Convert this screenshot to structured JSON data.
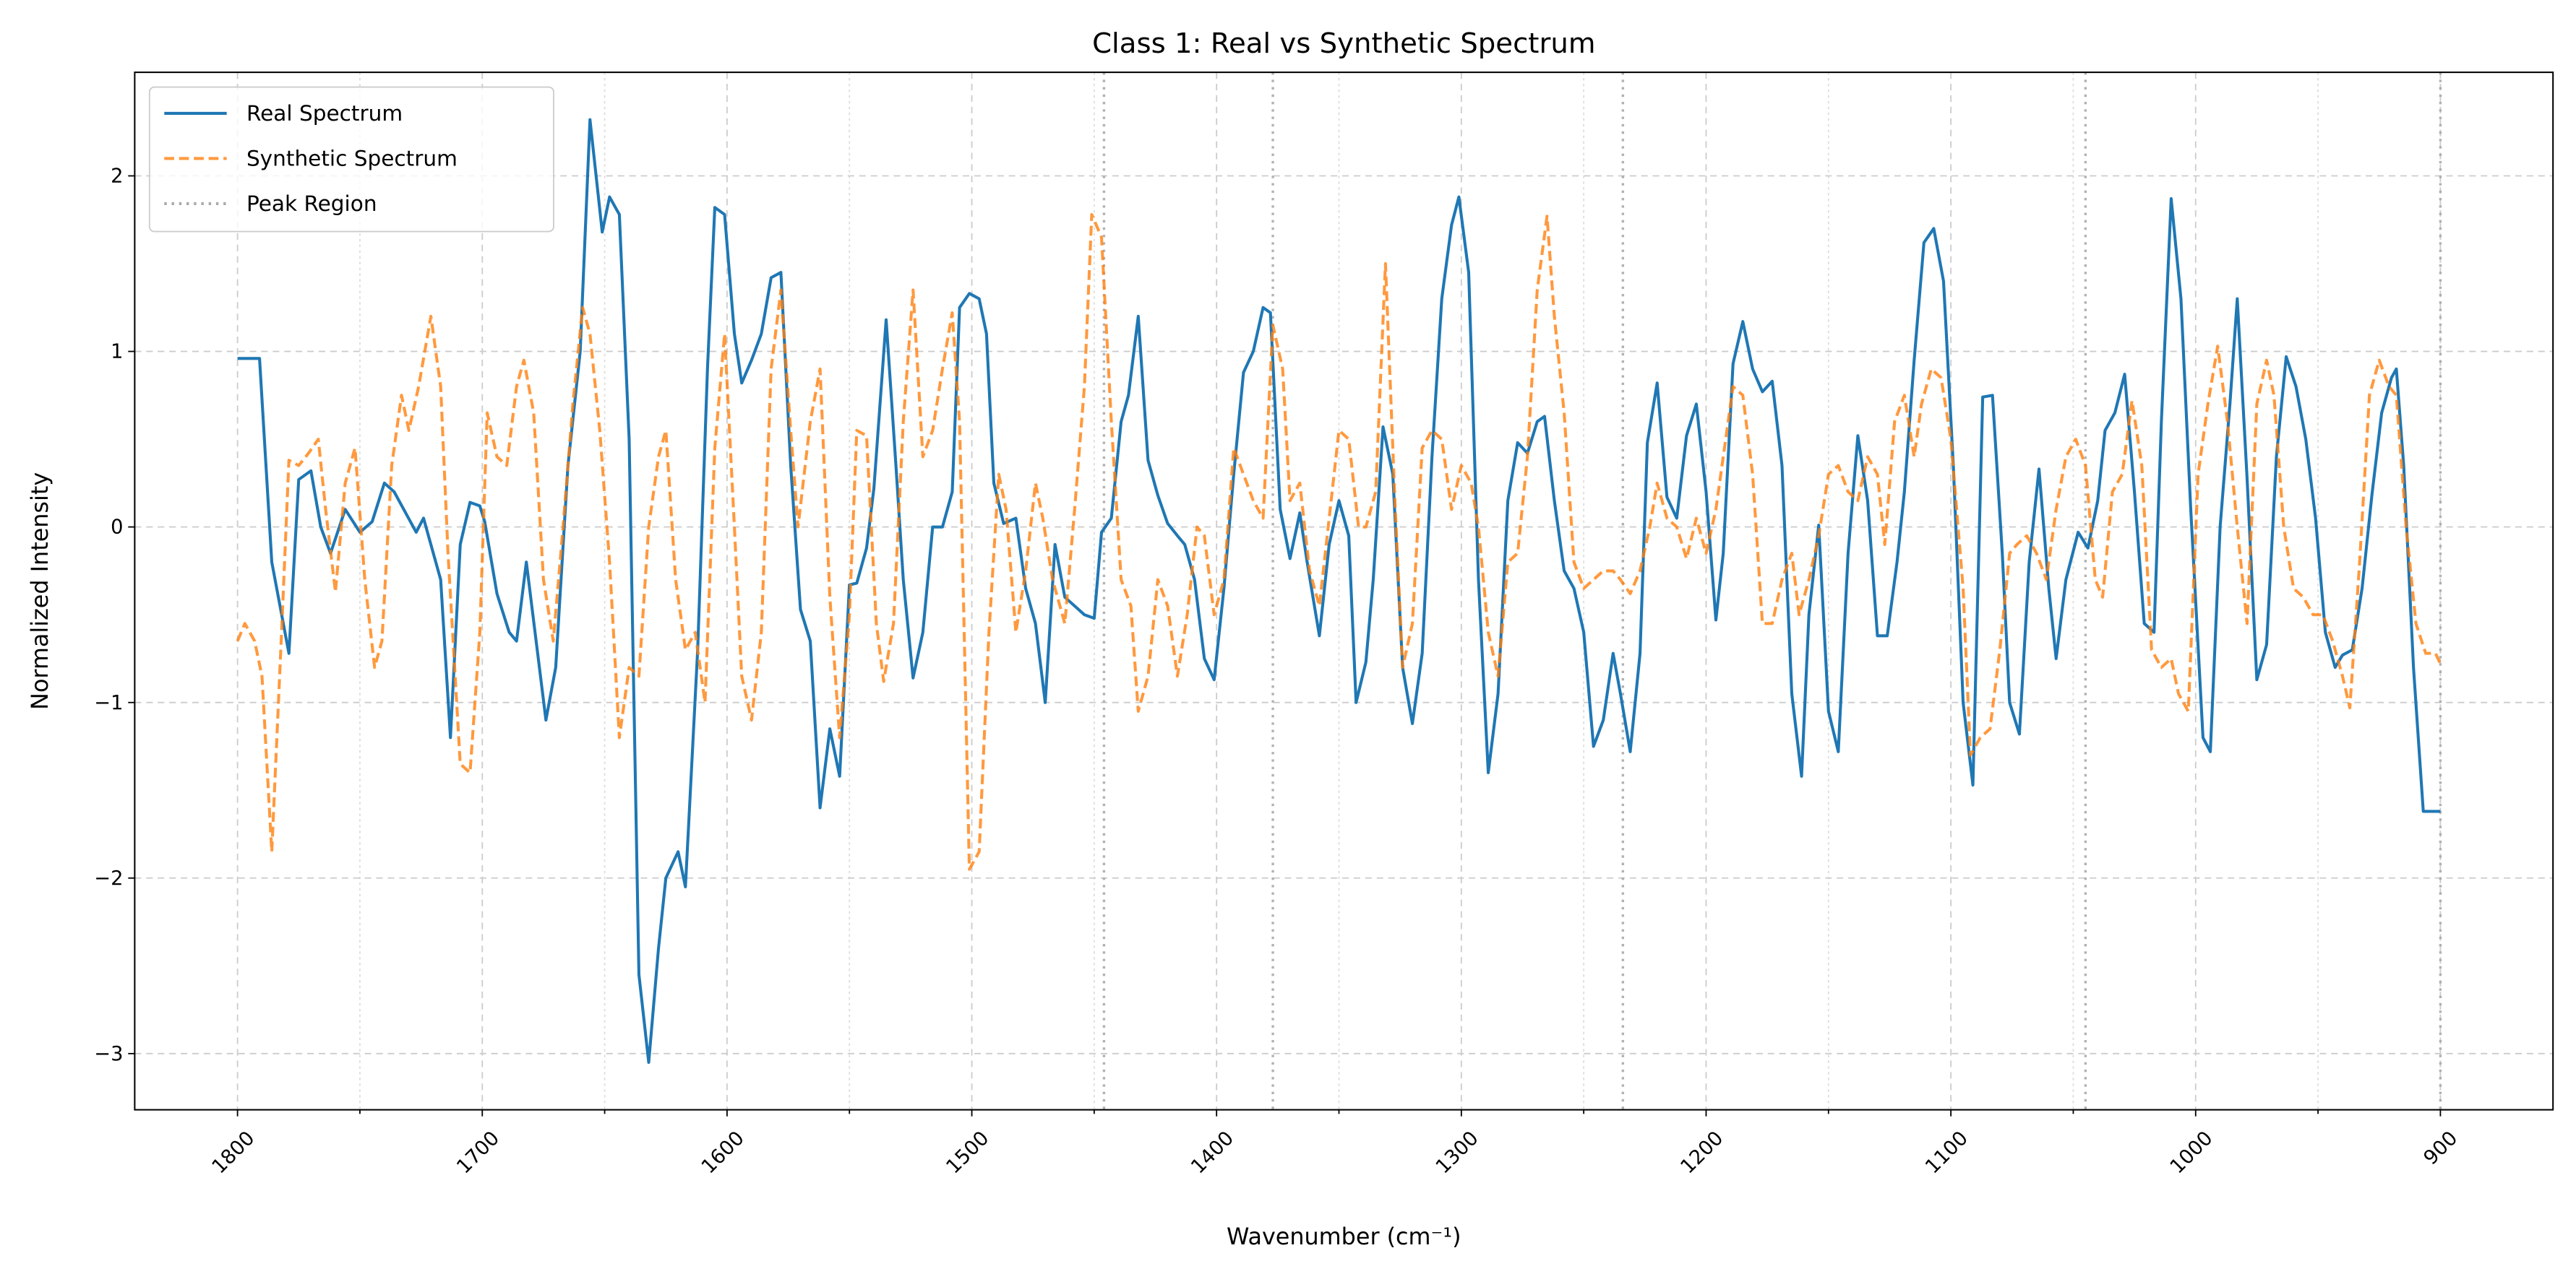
{
  "chart_data": {
    "type": "line",
    "title": "Class 1: Real vs Synthetic Spectrum",
    "xlabel": "Wavenumber (cm⁻¹)",
    "ylabel": "Normalized Intensity",
    "xlim": [
      1842,
      854
    ],
    "ylim": [
      -3.32,
      2.59
    ],
    "xticks": [
      1800,
      1700,
      1600,
      1500,
      1400,
      1300,
      1200,
      1100,
      1000,
      900
    ],
    "xminor_ticks": [
      1750,
      1650,
      1550,
      1450,
      1350,
      1250,
      1150,
      1050,
      950
    ],
    "yticks": [
      {
        "value": -3,
        "label": "−3"
      },
      {
        "value": -2,
        "label": "−2"
      },
      {
        "value": -1,
        "label": "−1"
      },
      0,
      1,
      2
    ],
    "grid": true,
    "legend": "upper left",
    "series": [
      {
        "name": "Real Spectrum",
        "color": "#1f77b4",
        "linestyle": "solid",
        "x": [
          1800,
          1791,
          1786,
          1779,
          1775,
          1770,
          1766,
          1762,
          1756,
          1750,
          1745,
          1740,
          1736,
          1727,
          1724,
          1717,
          1713,
          1709,
          1705,
          1701,
          1699,
          1694,
          1689,
          1686,
          1682,
          1674,
          1670,
          1665,
          1660,
          1656,
          1651,
          1648,
          1644,
          1640,
          1636,
          1632,
          1628,
          1625,
          1620,
          1617,
          1612,
          1608,
          1605,
          1601,
          1597,
          1594,
          1590,
          1586,
          1582,
          1578,
          1574,
          1570,
          1566,
          1562,
          1558,
          1554,
          1550,
          1547,
          1543,
          1540,
          1535,
          1531,
          1528,
          1524,
          1520,
          1516,
          1512,
          1508,
          1505,
          1501,
          1497,
          1494,
          1491,
          1487,
          1482,
          1478,
          1474,
          1470,
          1466,
          1462,
          1458,
          1454,
          1450,
          1447,
          1443,
          1439,
          1436,
          1432,
          1428,
          1424,
          1420,
          1416,
          1413,
          1409,
          1405,
          1401,
          1397,
          1393,
          1389,
          1385,
          1381,
          1378,
          1374,
          1370,
          1366,
          1363,
          1358,
          1354,
          1350,
          1346,
          1343,
          1339,
          1336,
          1332,
          1328,
          1324,
          1320,
          1316,
          1312,
          1308,
          1304,
          1301,
          1297,
          1293,
          1289,
          1285,
          1281,
          1277,
          1273,
          1269,
          1266,
          1262,
          1258,
          1254,
          1250,
          1246,
          1242,
          1238,
          1235,
          1231,
          1227,
          1224,
          1220,
          1216,
          1212,
          1208,
          1204,
          1200,
          1196,
          1193,
          1189,
          1185,
          1181,
          1177,
          1173,
          1169,
          1165,
          1161,
          1158,
          1154,
          1150,
          1146,
          1142,
          1138,
          1134,
          1130,
          1126,
          1122,
          1119,
          1115,
          1111,
          1107,
          1103,
          1099,
          1095,
          1091,
          1087,
          1083,
          1079,
          1076,
          1072,
          1068,
          1064,
          1060,
          1057,
          1053,
          1048,
          1044,
          1040,
          1037,
          1033,
          1029,
          1025,
          1021,
          1017,
          1014,
          1010,
          1006,
          1002,
          997,
          994,
          990,
          986,
          983,
          979,
          975,
          971,
          967,
          963,
          959,
          955,
          951,
          947,
          943,
          940,
          936,
          932,
          928,
          924,
          920,
          918,
          915,
          911,
          907,
          900
        ],
        "values": [
          0.96,
          0.96,
          -0.2,
          -0.72,
          0.27,
          0.32,
          0.0,
          -0.15,
          0.1,
          -0.03,
          0.03,
          0.25,
          0.2,
          -0.03,
          0.05,
          -0.3,
          -1.2,
          -0.1,
          0.14,
          0.12,
          0.03,
          -0.38,
          -0.6,
          -0.65,
          -0.2,
          -1.1,
          -0.8,
          0.35,
          1.0,
          2.32,
          1.68,
          1.88,
          1.78,
          0.5,
          -2.55,
          -3.05,
          -2.4,
          -2.0,
          -1.85,
          -2.05,
          -0.7,
          0.9,
          1.82,
          1.78,
          1.1,
          0.82,
          0.95,
          1.1,
          1.42,
          1.45,
          0.35,
          -0.47,
          -0.65,
          -1.6,
          -1.15,
          -1.42,
          -0.33,
          -0.32,
          -0.12,
          0.22,
          1.18,
          0.35,
          -0.3,
          -0.86,
          -0.6,
          0.0,
          0.0,
          0.2,
          1.25,
          1.33,
          1.3,
          1.1,
          0.25,
          0.02,
          0.05,
          -0.35,
          -0.55,
          -1.0,
          -0.1,
          -0.4,
          -0.45,
          -0.5,
          -0.52,
          -0.03,
          0.05,
          0.6,
          0.75,
          1.2,
          0.38,
          0.18,
          0.02,
          -0.05,
          -0.1,
          -0.3,
          -0.75,
          -0.87,
          -0.35,
          0.3,
          0.88,
          1.0,
          1.25,
          1.22,
          0.1,
          -0.18,
          0.08,
          -0.2,
          -0.62,
          -0.1,
          0.15,
          -0.05,
          -1.0,
          -0.77,
          -0.3,
          0.57,
          0.3,
          -0.8,
          -1.12,
          -0.72,
          0.4,
          1.3,
          1.72,
          1.88,
          1.45,
          -0.3,
          -1.4,
          -0.95,
          0.15,
          0.48,
          0.42,
          0.6,
          0.63,
          0.15,
          -0.25,
          -0.35,
          -0.6,
          -1.25,
          -1.1,
          -0.72,
          -0.95,
          -1.28,
          -0.72,
          0.48,
          0.82,
          0.17,
          0.05,
          0.52,
          0.7,
          0.2,
          -0.53,
          -0.15,
          0.93,
          1.17,
          0.9,
          0.77,
          0.83,
          0.35,
          -0.95,
          -1.42,
          -0.5,
          0.01,
          -1.05,
          -1.28,
          -0.15,
          0.52,
          0.15,
          -0.62,
          -0.62,
          -0.2,
          0.2,
          0.95,
          1.62,
          1.7,
          1.4,
          0.35,
          -1.0,
          -1.47,
          0.74,
          0.75,
          -0.15,
          -1.0,
          -1.18,
          -0.2,
          0.33,
          -0.35,
          -0.75,
          -0.3,
          -0.03,
          -0.12,
          0.15,
          0.55,
          0.65,
          0.87,
          0.2,
          -0.55,
          -0.6,
          0.6,
          1.87,
          1.3,
          0.1,
          -1.2,
          -1.28,
          0.0,
          0.7,
          1.3,
          0.28,
          -0.87,
          -0.67,
          0.4,
          0.97,
          0.8,
          0.5,
          0.05,
          -0.6,
          -0.8,
          -0.73,
          -0.7,
          -0.35,
          0.18,
          0.65,
          0.85,
          0.9,
          0.35,
          -0.8,
          -1.62,
          -1.62
        ]
      },
      {
        "name": "Synthetic Spectrum",
        "color": "#ff7f0e",
        "linestyle": "dashed",
        "x": [
          1800,
          1797,
          1793,
          1790,
          1786,
          1782,
          1779,
          1775,
          1771,
          1767,
          1764,
          1760,
          1756,
          1752,
          1748,
          1744,
          1741,
          1737,
          1733,
          1730,
          1726,
          1721,
          1717,
          1714,
          1709,
          1705,
          1701,
          1698,
          1694,
          1690,
          1686,
          1683,
          1679,
          1675,
          1671,
          1667,
          1663,
          1659,
          1656,
          1652,
          1648,
          1644,
          1640,
          1636,
          1632,
          1628,
          1625,
          1621,
          1617,
          1613,
          1609,
          1605,
          1601,
          1597,
          1594,
          1590,
          1586,
          1582,
          1578,
          1574,
          1571,
          1566,
          1562,
          1558,
          1554,
          1550,
          1547,
          1543,
          1539,
          1536,
          1532,
          1528,
          1524,
          1520,
          1516,
          1512,
          1508,
          1505,
          1501,
          1497,
          1493,
          1489,
          1486,
          1482,
          1478,
          1474,
          1471,
          1467,
          1462,
          1458,
          1454,
          1451,
          1447,
          1443,
          1439,
          1435,
          1432,
          1428,
          1424,
          1420,
          1416,
          1412,
          1408,
          1405,
          1401,
          1397,
          1393,
          1389,
          1385,
          1381,
          1377,
          1373,
          1370,
          1366,
          1362,
          1358,
          1354,
          1350,
          1346,
          1342,
          1339,
          1335,
          1331,
          1327,
          1324,
          1320,
          1316,
          1312,
          1308,
          1304,
          1300,
          1296,
          1293,
          1289,
          1285,
          1281,
          1277,
          1273,
          1269,
          1265,
          1262,
          1258,
          1254,
          1250,
          1246,
          1242,
          1238,
          1235,
          1231,
          1227,
          1223,
          1220,
          1216,
          1212,
          1208,
          1204,
          1200,
          1196,
          1192,
          1189,
          1185,
          1181,
          1177,
          1173,
          1169,
          1165,
          1162,
          1158,
          1154,
          1150,
          1146,
          1142,
          1138,
          1134,
          1130,
          1127,
          1123,
          1119,
          1115,
          1112,
          1108,
          1104,
          1100,
          1095,
          1092,
          1088,
          1084,
          1080,
          1076,
          1073,
          1069,
          1065,
          1061,
          1057,
          1053,
          1049,
          1045,
          1041,
          1038,
          1034,
          1030,
          1026,
          1022,
          1018,
          1014,
          1010,
          1007,
          1003,
          999,
          995,
          991,
          987,
          983,
          979,
          975,
          971,
          968,
          964,
          960,
          956,
          952,
          948,
          944,
          940,
          937,
          933,
          929,
          925,
          921,
          918,
          914,
          910,
          906,
          902,
          900
        ],
        "values": [
          -0.65,
          -0.55,
          -0.65,
          -0.85,
          -1.85,
          -0.6,
          0.38,
          0.35,
          0.42,
          0.5,
          0.1,
          -0.37,
          0.25,
          0.45,
          -0.3,
          -0.8,
          -0.65,
          0.35,
          0.75,
          0.55,
          0.8,
          1.2,
          0.8,
          -0.15,
          -1.35,
          -1.4,
          -0.6,
          0.65,
          0.4,
          0.35,
          0.8,
          0.95,
          0.65,
          -0.3,
          -0.65,
          0.0,
          0.7,
          1.25,
          1.1,
          0.55,
          -0.2,
          -1.2,
          -0.8,
          -0.85,
          0.0,
          0.4,
          0.55,
          -0.3,
          -0.7,
          -0.6,
          -1.0,
          0.45,
          1.1,
          0.0,
          -0.85,
          -1.1,
          -0.6,
          0.9,
          1.35,
          0.55,
          0.0,
          0.6,
          0.9,
          -0.4,
          -1.2,
          -0.5,
          0.55,
          0.52,
          -0.55,
          -0.88,
          -0.55,
          0.6,
          1.35,
          0.4,
          0.55,
          0.9,
          1.22,
          0.6,
          -1.95,
          -1.85,
          -0.6,
          0.3,
          0.1,
          -0.6,
          -0.25,
          0.25,
          0.05,
          -0.3,
          -0.55,
          0.1,
          0.8,
          1.78,
          1.65,
          0.6,
          -0.3,
          -0.45,
          -1.05,
          -0.85,
          -0.3,
          -0.45,
          -0.85,
          -0.5,
          0.0,
          -0.05,
          -0.5,
          -0.3,
          0.45,
          0.3,
          0.15,
          0.05,
          1.15,
          0.9,
          0.15,
          0.25,
          -0.25,
          -0.45,
          0.05,
          0.55,
          0.5,
          0.0,
          0.0,
          0.2,
          1.5,
          0.1,
          -0.8,
          -0.55,
          0.45,
          0.55,
          0.5,
          0.1,
          0.35,
          0.25,
          0.0,
          -0.6,
          -0.85,
          -0.2,
          -0.15,
          0.4,
          1.35,
          1.77,
          1.2,
          0.65,
          -0.2,
          -0.35,
          -0.3,
          -0.25,
          -0.25,
          -0.3,
          -0.38,
          -0.25,
          0.0,
          0.25,
          0.05,
          0.0,
          -0.18,
          0.05,
          -0.15,
          0.1,
          0.5,
          0.8,
          0.75,
          0.3,
          -0.55,
          -0.55,
          -0.3,
          -0.15,
          -0.5,
          -0.3,
          -0.05,
          0.3,
          0.35,
          0.2,
          0.15,
          0.4,
          0.3,
          -0.1,
          0.6,
          0.75,
          0.4,
          0.7,
          0.9,
          0.85,
          0.5,
          -0.35,
          -1.3,
          -1.2,
          -1.15,
          -0.7,
          -0.15,
          -0.1,
          -0.05,
          -0.15,
          -0.3,
          0.1,
          0.4,
          0.5,
          0.35,
          -0.3,
          -0.4,
          0.2,
          0.3,
          0.72,
          0.35,
          -0.7,
          -0.8,
          -0.75,
          -0.95,
          -1.05,
          0.3,
          0.7,
          1.03,
          0.6,
          0.0,
          -0.55,
          0.7,
          0.95,
          0.75,
          0.0,
          -0.35,
          -0.4,
          -0.5,
          -0.5,
          -0.65,
          -0.85,
          -1.03,
          -0.2,
          0.75,
          0.95,
          0.8,
          0.75,
          0.0,
          -0.55,
          -0.72,
          -0.72,
          -0.78
        ]
      }
    ],
    "peak_region": {
      "name": "Peak Region",
      "color": "#aaaaaa",
      "linestyle": "dotted",
      "x": [
        1446,
        1377,
        1234,
        1045,
        900
      ]
    }
  }
}
